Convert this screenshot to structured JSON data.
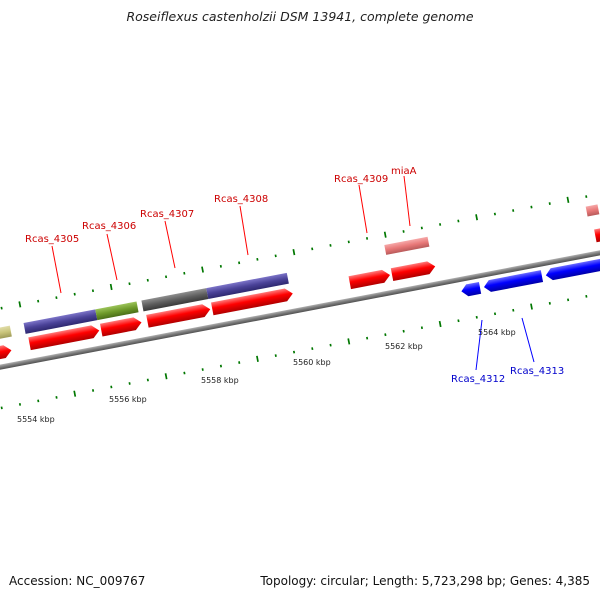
{
  "title": "Roseiflexus castenholzii DSM 13941, complete genome",
  "footer": {
    "accession": "Accession: NC_009767",
    "topology": "Topology: circular; Length: 5,723,298 bp; Genes: 4,385"
  },
  "scale_labels": [
    "5554 kbp",
    "5556 kbp",
    "5558 kbp",
    "5560 kbp",
    "5562 kbp",
    "5564 kbp"
  ],
  "colors": {
    "forward_gene": "#ff0000",
    "reverse_gene": "#0000ff",
    "pseudo_gene": "#e87878",
    "backbone": "#808080",
    "tick": "#007700",
    "cog_purple": "#4a4298",
    "cog_olive": "#6e9a2a",
    "cog_gray": "#5e5e5e",
    "cog_khaki": "#c9c47a"
  },
  "gene_labels": [
    {
      "text": "Rcas_4305",
      "strand": "forward"
    },
    {
      "text": "Rcas_4306",
      "strand": "forward"
    },
    {
      "text": "Rcas_4307",
      "strand": "forward"
    },
    {
      "text": "Rcas_4308",
      "strand": "forward"
    },
    {
      "text": "Rcas_4309",
      "strand": "forward"
    },
    {
      "text": "miaA",
      "strand": "forward"
    },
    {
      "text": "Rcas_4312",
      "strand": "reverse"
    },
    {
      "text": "Rcas_4313",
      "strand": "reverse"
    }
  ]
}
